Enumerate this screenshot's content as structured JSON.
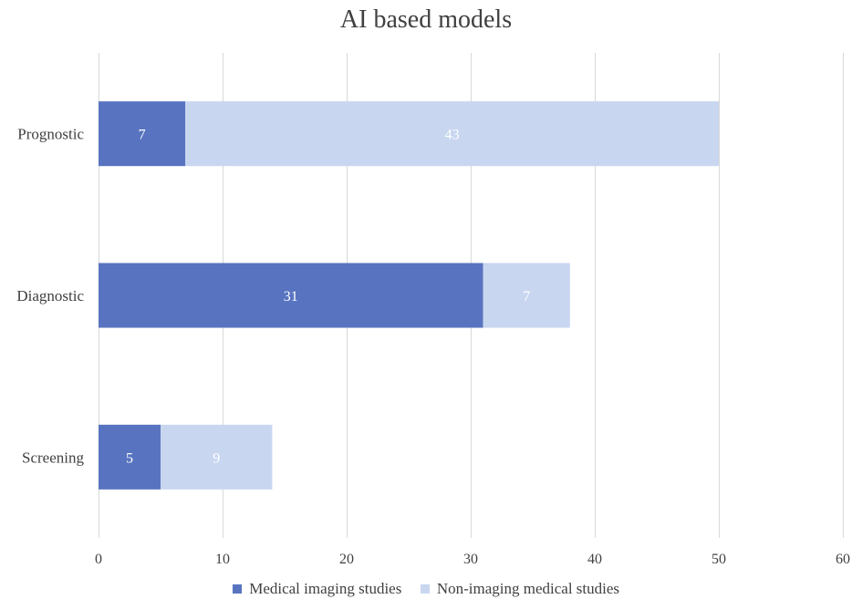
{
  "chart_data": {
    "type": "bar",
    "orientation": "horizontal",
    "stacked": true,
    "title": "AI based models",
    "categories": [
      "Prognostic",
      "Diagnostic",
      "Screening"
    ],
    "series": [
      {
        "name": "Medical imaging studies",
        "values": [
          7,
          31,
          5
        ],
        "color": "#5874c0"
      },
      {
        "name": "Non-imaging medical studies",
        "values": [
          43,
          7,
          9
        ],
        "color": "#c8d6f0"
      }
    ],
    "xlim": [
      0,
      60
    ],
    "xticks": [
      0,
      10,
      20,
      30,
      40,
      50,
      60
    ],
    "grid": "vertical",
    "legend_position": "bottom",
    "data_label_color": "#ffffff",
    "axis_text_color": "#404040",
    "grid_color": "#d9d9d9"
  }
}
